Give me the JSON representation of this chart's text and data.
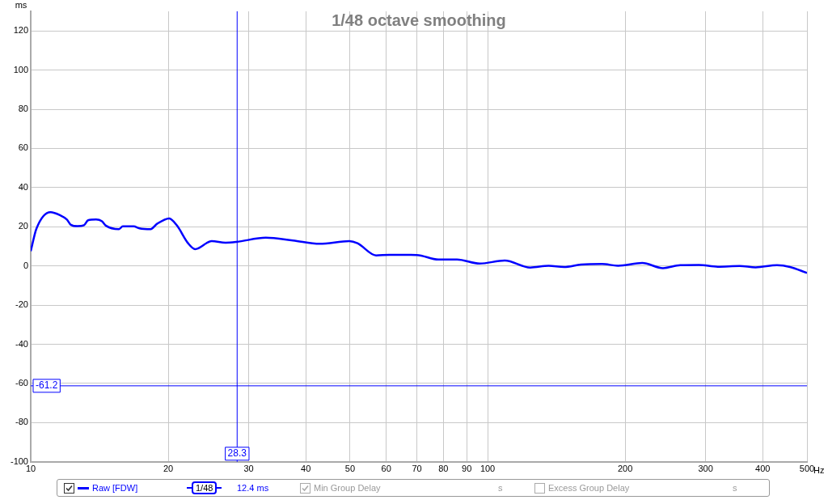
{
  "chart_data": {
    "type": "line",
    "title": "1/48 octave smoothing",
    "ylabel": "ms",
    "xlabel": "Hz",
    "log": "x",
    "grid": true,
    "legend": "bottom",
    "marker": "none",
    "line_style": "solid",
    "xlim": [
      10,
      500
    ],
    "xticks": [
      10,
      20,
      30,
      40,
      50,
      60,
      70,
      80,
      90,
      100,
      200,
      300,
      400,
      500
    ],
    "ylim": [
      -100,
      130
    ],
    "yticks": [
      -100,
      -80,
      -60,
      -40,
      -20,
      0,
      20,
      40,
      60,
      80,
      100,
      120
    ],
    "series": [
      {
        "name": "Raw [FDW]",
        "color": "#0000ff",
        "x": [
          10,
          10.29,
          11.05,
          11.58,
          12.0,
          12.24,
          12.66,
          13.08,
          13.35,
          13.9,
          14.3,
          14.6,
          15.6,
          15.9,
          16.8,
          17.3,
          18.3,
          18.9,
          20.1,
          20.9,
          22.1,
          22.9,
          24.9,
          26.7,
          28.2,
          32.7,
          37.5,
          42.9,
          49.8,
          51.9,
          57,
          60.9,
          70,
          78,
          85.7,
          96.1,
          109,
          124,
          136,
          147,
          160,
          178,
          193,
          218,
          242,
          264,
          290,
          319,
          356,
          386,
          430,
          459,
          500
        ],
        "values": [
          7.5,
          19,
          27.5,
          26,
          23.7,
          21,
          20.3,
          20.8,
          23.3,
          23.7,
          22.9,
          20.6,
          18.8,
          20.2,
          20.2,
          19.2,
          18.8,
          21.5,
          24.3,
          20.6,
          11.6,
          8.6,
          12.7,
          11.9,
          12.3,
          14.4,
          13,
          11.3,
          12.7,
          11.6,
          5.4,
          5.7,
          5.6,
          3.3,
          3.3,
          1.2,
          2.8,
          -0.8,
          0.1,
          -0.5,
          0.7,
          1.0,
          0.1,
          1.5,
          -1.1,
          0.4,
          0.5,
          -0.4,
          0,
          -0.7,
          0.4,
          -0.5,
          -3.6
        ]
      }
    ],
    "ref_lines": [
      {
        "axis": "x",
        "value": 28.3,
        "label": "28.3",
        "color": "#0000ff"
      },
      {
        "axis": "y",
        "value": -61.2,
        "label": "-61.2",
        "color": "#0000ff"
      }
    ],
    "annotations": [
      "1/48",
      "12.4 ms",
      "Min Group Delay",
      "s",
      "Excess Group Delay",
      "s"
    ]
  }
}
